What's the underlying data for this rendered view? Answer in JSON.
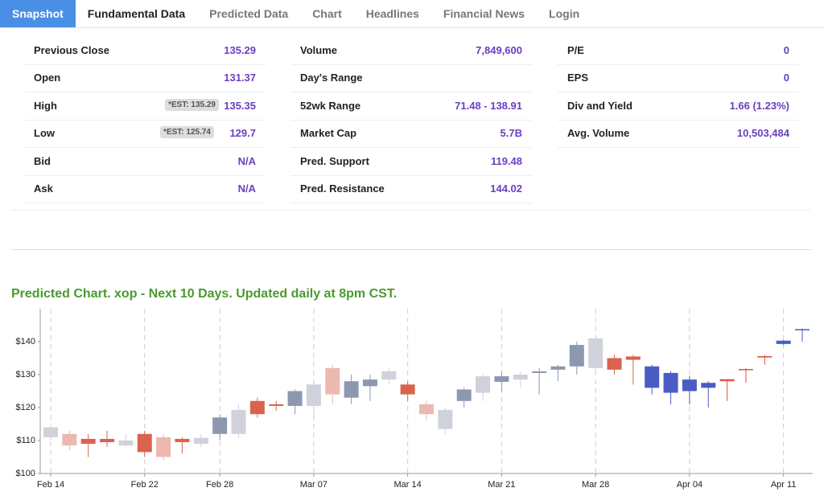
{
  "nav": {
    "tabs": [
      "Snapshot",
      "Fundamental Data",
      "Predicted Data",
      "Chart",
      "Headlines",
      "Financial News",
      "Login"
    ]
  },
  "stats": [
    [
      {
        "label": "Previous Close",
        "value": "135.29"
      },
      {
        "label": "Open",
        "value": "131.37"
      },
      {
        "label": "High",
        "est": "*EST: 135.29",
        "value": "135.35"
      },
      {
        "label": "Low",
        "est": "*EST: 125.74",
        "value": "129.7"
      },
      {
        "label": "Bid",
        "value": "N/A"
      },
      {
        "label": "Ask",
        "value": "N/A"
      }
    ],
    [
      {
        "label": "Volume",
        "value": "7,849,600"
      },
      {
        "label": "Day's Range"
      },
      {
        "label": "52wk Range",
        "value": "71.48 - 138.91"
      },
      {
        "label": "Market Cap",
        "value": "5.7B"
      },
      {
        "label": "Pred. Support",
        "value": "119.48"
      },
      {
        "label": "Pred. Resistance",
        "value": "144.02"
      }
    ],
    [
      {
        "label": "P/E",
        "value": "0"
      },
      {
        "label": "EPS",
        "value": "0"
      },
      {
        "label": "Div and Yield",
        "value": "1.66 (1.23%)"
      },
      {
        "label": "Avg. Volume",
        "value": "10,503,484"
      }
    ]
  ],
  "chart_data": {
    "type": "candlestick",
    "title": "Predicted Chart. xop - Next 10 Days. Updated daily at 8pm CST.",
    "categories": [
      "Feb 14",
      null,
      null,
      null,
      null,
      "Feb 22",
      null,
      null,
      null,
      "Feb 28",
      null,
      null,
      null,
      null,
      "Mar 07",
      null,
      null,
      null,
      null,
      "Mar 14",
      null,
      null,
      null,
      null,
      "Mar 21",
      null,
      null,
      null,
      null,
      "Mar 28",
      null,
      null,
      null,
      null,
      "Apr 04",
      null,
      null,
      null,
      null,
      "Apr 11",
      null
    ],
    "open": [
      111,
      112,
      110.5,
      110.5,
      110,
      112,
      111,
      110.5,
      109,
      112,
      112,
      122,
      121,
      120.5,
      120.5,
      132,
      123,
      126.5,
      128.5,
      127,
      121,
      113.5,
      122,
      124.5,
      127.8,
      128.5,
      130.5,
      131.5,
      132.5,
      132,
      135,
      135.5,
      132.5,
      130.5,
      128.5,
      127.5,
      128,
      131.5,
      135.2,
      140.3,
      143.8
    ],
    "high": [
      115,
      113,
      112,
      113,
      112,
      113,
      112,
      111,
      112,
      118,
      121,
      123,
      122,
      125.5,
      128,
      133,
      130,
      130,
      132,
      128,
      122,
      120,
      126,
      130,
      131,
      131,
      132,
      133,
      140,
      141.5,
      136,
      136,
      133,
      131,
      129.5,
      128,
      128.6,
      132,
      136,
      140.5,
      144
    ],
    "low": [
      110,
      107,
      105,
      108,
      108,
      105,
      104,
      106,
      108,
      110,
      111,
      117,
      119,
      118,
      116,
      121,
      121,
      122,
      127,
      122,
      116,
      112,
      120,
      122,
      125,
      126,
      124,
      128,
      130,
      131,
      130,
      127,
      124,
      121,
      121,
      120,
      122,
      127.5,
      133,
      139,
      140
    ],
    "close": [
      114,
      108.5,
      109,
      109.5,
      108.5,
      106.5,
      105,
      109.5,
      110.8,
      117,
      119.3,
      118,
      120.5,
      125,
      127,
      124,
      128,
      128.5,
      131,
      124,
      118,
      119.3,
      125.5,
      129.5,
      129.5,
      130,
      131,
      132.5,
      139,
      141,
      131.5,
      134.5,
      126,
      124.5,
      125,
      126,
      128.6,
      131.7,
      135.6,
      139.3,
      143.8
    ],
    "colors": [
      "#cfd2da",
      "#ecb8b0",
      "#d9634f",
      "#d9634f",
      "#cfd2da",
      "#d9634f",
      "#ecb8b0",
      "#d9634f",
      "#cfd2da",
      "#8c98b0",
      "#cfd2da",
      "#d9634f",
      "#d9634f",
      "#8c98b0",
      "#cfd2da",
      "#ecb8b0",
      "#8c98b0",
      "#8c98b0",
      "#cfd2da",
      "#d9634f",
      "#ecb8b0",
      "#cfd2da",
      "#8c98b0",
      "#cfd2da",
      "#8c98b0",
      "#cfd2da",
      "#8c98b0",
      "#8c98b0",
      "#8c98b0",
      "#cfd2da",
      "#d9634f",
      "#d9634f",
      "#4a5cc4",
      "#4a5cc4",
      "#4a5cc4",
      "#4a5cc4",
      "#e0533f",
      "#e0533f",
      "#e0533f",
      "#4a5cc4",
      "#4a5cc4"
    ],
    "ylim": [
      100,
      150
    ],
    "yticks": [
      {
        "value": 100,
        "label": "$100"
      },
      {
        "value": 110,
        "label": "$110"
      },
      {
        "value": 120,
        "label": "$120"
      },
      {
        "value": 130,
        "label": "$130"
      },
      {
        "value": 140,
        "label": "$140"
      }
    ],
    "grid": true
  }
}
